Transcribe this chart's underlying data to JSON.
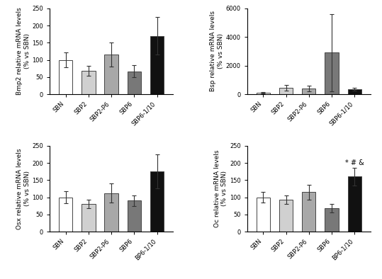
{
  "categories_default": [
    "SBN",
    "SBP2",
    "SBP2-P6",
    "SBP6",
    "SBP6-1/10"
  ],
  "panels": [
    {
      "key": "bmp2",
      "ylabel": "Bmp2 relative mRNA levels\n(% vs SBN)",
      "values": [
        100,
        68,
        116,
        67,
        170
      ],
      "errors": [
        22,
        15,
        35,
        18,
        55
      ],
      "ylim": [
        0,
        250
      ],
      "yticks": [
        0,
        50,
        100,
        150,
        200,
        250
      ],
      "colors": [
        "#ffffff",
        "#d0d0d0",
        "#a8a8a8",
        "#787878",
        "#111111"
      ],
      "xlabels": [
        "SBN",
        "SBP2",
        "SBP2-P6",
        "SBP6",
        "SBP6-1/10"
      ],
      "annotations": []
    },
    {
      "key": "bsp",
      "ylabel": "Bsp relative mRNA levels\n(% vs SBN)",
      "values": [
        100,
        430,
        400,
        2900,
        350
      ],
      "errors": [
        50,
        200,
        200,
        2700,
        100
      ],
      "ylim": [
        0,
        6000
      ],
      "yticks": [
        0,
        2000,
        4000,
        6000
      ],
      "colors": [
        "#ffffff",
        "#d0d0d0",
        "#a8a8a8",
        "#787878",
        "#111111"
      ],
      "xlabels": [
        "SBN",
        "SBP2",
        "SBP2-P6",
        "SBP6",
        "SBP6-1/10"
      ],
      "annotations": []
    },
    {
      "key": "osx",
      "ylabel": "Osx relative mRNA levels\n(% vs SBN)",
      "values": [
        100,
        80,
        112,
        90,
        175
      ],
      "errors": [
        18,
        12,
        28,
        15,
        50
      ],
      "ylim": [
        0,
        250
      ],
      "yticks": [
        0,
        50,
        100,
        150,
        200,
        250
      ],
      "colors": [
        "#ffffff",
        "#d0d0d0",
        "#a8a8a8",
        "#787878",
        "#111111"
      ],
      "xlabels": [
        "SBN",
        "SBP2",
        "SBP2-P6",
        "SBP6",
        "BP6-1/10"
      ],
      "annotations": []
    },
    {
      "key": "oc",
      "ylabel": "Oc relative mRNA levels\n(% vs SBN)",
      "values": [
        100,
        93,
        115,
        68,
        160
      ],
      "errors": [
        15,
        12,
        22,
        12,
        25
      ],
      "ylim": [
        0,
        250
      ],
      "yticks": [
        0,
        50,
        100,
        150,
        200,
        250
      ],
      "colors": [
        "#ffffff",
        "#d0d0d0",
        "#a8a8a8",
        "#787878",
        "#111111"
      ],
      "xlabels": [
        "SBN",
        "SBP2",
        "SBP2-P6",
        "SBP6",
        "BP6-1/10"
      ],
      "annotations": [
        "* # &"
      ]
    }
  ],
  "bar_width": 0.6,
  "edgecolor": "#444444",
  "tick_fontsize": 6,
  "label_fontsize": 6.5,
  "annot_fontsize": 7
}
